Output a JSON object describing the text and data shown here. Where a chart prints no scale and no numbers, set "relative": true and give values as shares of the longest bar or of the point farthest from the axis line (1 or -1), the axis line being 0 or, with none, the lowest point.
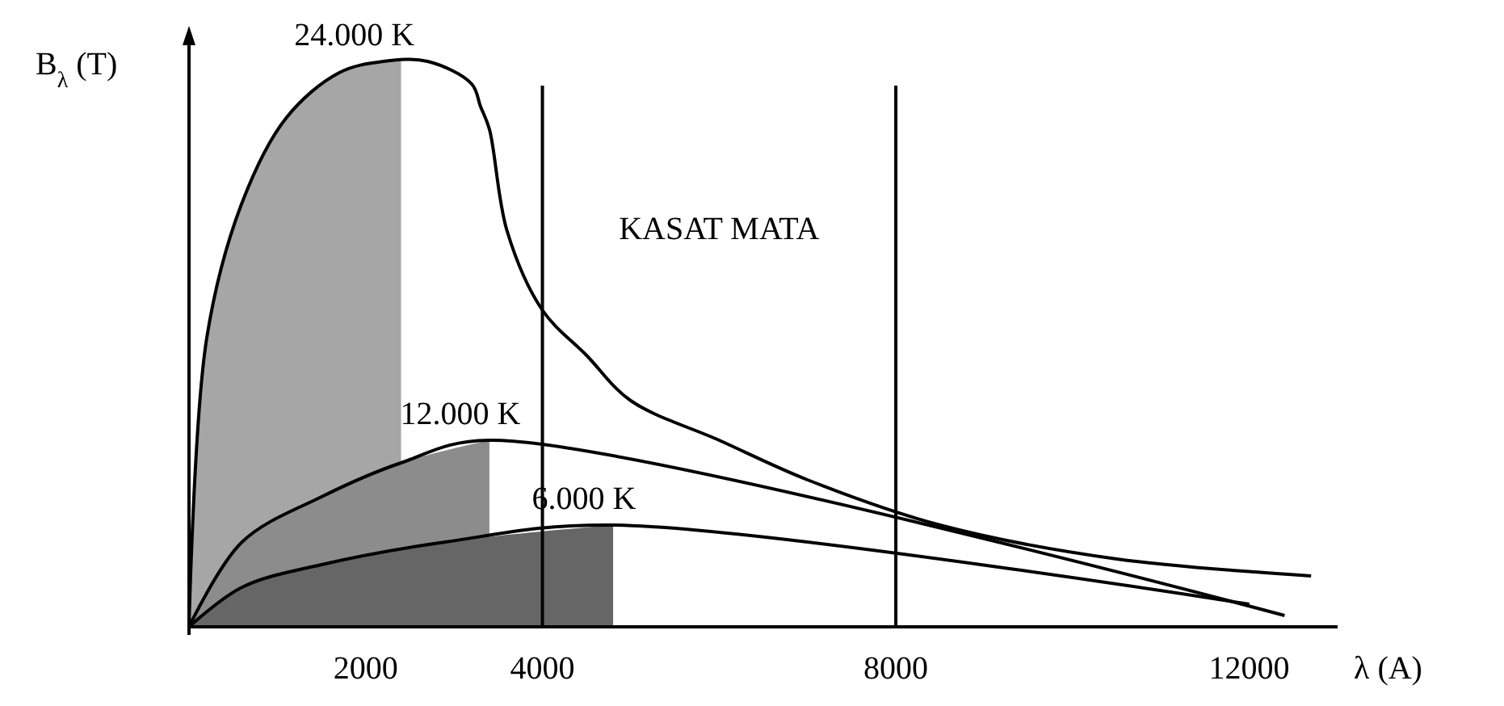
{
  "chart_data": {
    "type": "line",
    "relative": true,
    "xlabel": "λ (A)",
    "ylabel": "B$_{λ}$ (T)",
    "xlim": [
      0,
      13000
    ],
    "xticks": [
      2000,
      4000,
      8000,
      12000
    ],
    "grid": false,
    "line_style": "solid",
    "series": [
      {
        "type": "area",
        "color": "#a6a6a6",
        "x": [
          0,
          200,
          600,
          1100,
          1700,
          2200,
          2400
        ],
        "values": [
          0,
          0.51,
          0.75,
          0.9,
          0.98,
          1.0,
          1.0
        ]
      },
      {
        "type": "area",
        "color": "#8c8c8c",
        "x": [
          0,
          600,
          1500,
          2400,
          3400
        ],
        "values": [
          0,
          0.15,
          0.23,
          0.29,
          0.33
        ]
      },
      {
        "type": "area",
        "color": "#666666",
        "x": [
          0,
          600,
          1500,
          2900,
          4800
        ],
        "values": [
          0,
          0.07,
          0.11,
          0.15,
          0.18
        ]
      },
      {
        "color": "#000000",
        "x": [
          0,
          200,
          600,
          1100,
          1700,
          2200,
          2700,
          3200,
          3300,
          3400,
          3600,
          4000,
          4500,
          5000,
          6000,
          7000,
          8500,
          10500,
          12700
        ],
        "values": [
          0,
          0.51,
          0.75,
          0.9,
          0.98,
          1.0,
          1.0,
          0.96,
          0.92,
          0.88,
          0.7,
          0.56,
          0.48,
          0.4,
          0.33,
          0.26,
          0.18,
          0.12,
          0.09
        ]
      },
      {
        "color": "#000000",
        "x": [
          0,
          600,
          1500,
          2400,
          3400,
          12400
        ],
        "values": [
          0,
          0.15,
          0.23,
          0.29,
          0.33,
          0.02
        ]
      },
      {
        "color": "#000000",
        "x": [
          0,
          600,
          1500,
          2900,
          4800,
          12000
        ],
        "values": [
          0,
          0.07,
          0.11,
          0.15,
          0.18,
          0.04
        ]
      }
    ],
    "ref_lines": [
      {
        "axis": "x",
        "value": 4000,
        "color": "#000000"
      },
      {
        "axis": "x",
        "value": 8000,
        "color": "#000000"
      }
    ],
    "annotations": [
      {
        "text": "24.000 K",
        "x": 2200,
        "y": 1.0
      },
      {
        "text": "12.000 K",
        "x": 3400,
        "y": 0.33
      },
      {
        "text": "6.000 K",
        "x": 4800,
        "y": 0.18
      },
      "KASAT MATA"
    ]
  }
}
